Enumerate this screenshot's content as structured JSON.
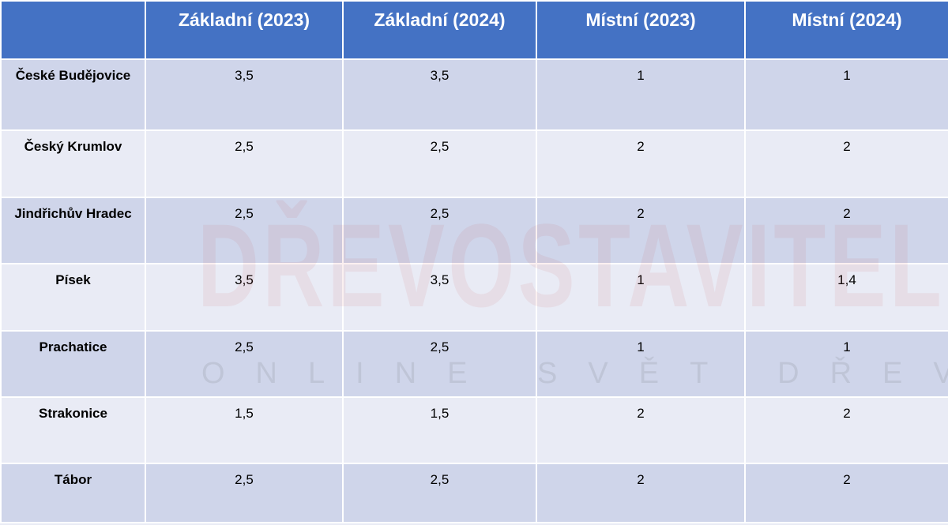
{
  "table": {
    "header": [
      "Základní (2023)",
      "Základní (2024)",
      "Místní (2023)",
      "Místní (2024)"
    ],
    "rows": [
      {
        "label": "České Budějovice",
        "cells": [
          "3,5",
          "3,5",
          "1",
          "1"
        ]
      },
      {
        "label": "Český Krumlov",
        "cells": [
          "2,5",
          "2,5",
          "2",
          "2"
        ]
      },
      {
        "label": "Jindřichův Hradec",
        "cells": [
          "2,5",
          "2,5",
          "2",
          "2"
        ]
      },
      {
        "label": "Písek",
        "cells": [
          "3,5",
          "3,5",
          "1",
          "1,4"
        ]
      },
      {
        "label": "Prachatice",
        "cells": [
          "2,5",
          "2,5",
          "1",
          "1"
        ]
      },
      {
        "label": "Strakonice",
        "cells": [
          "1,5",
          "1,5",
          "2",
          "2"
        ]
      },
      {
        "label": "Tábor",
        "cells": [
          "2,5",
          "2,5",
          "2",
          "2"
        ]
      }
    ]
  },
  "watermark": {
    "brand": "DŘEVOSTAVITEL",
    "tagline": "ONLINE SVĚT DŘEVOSTAVEB"
  }
}
